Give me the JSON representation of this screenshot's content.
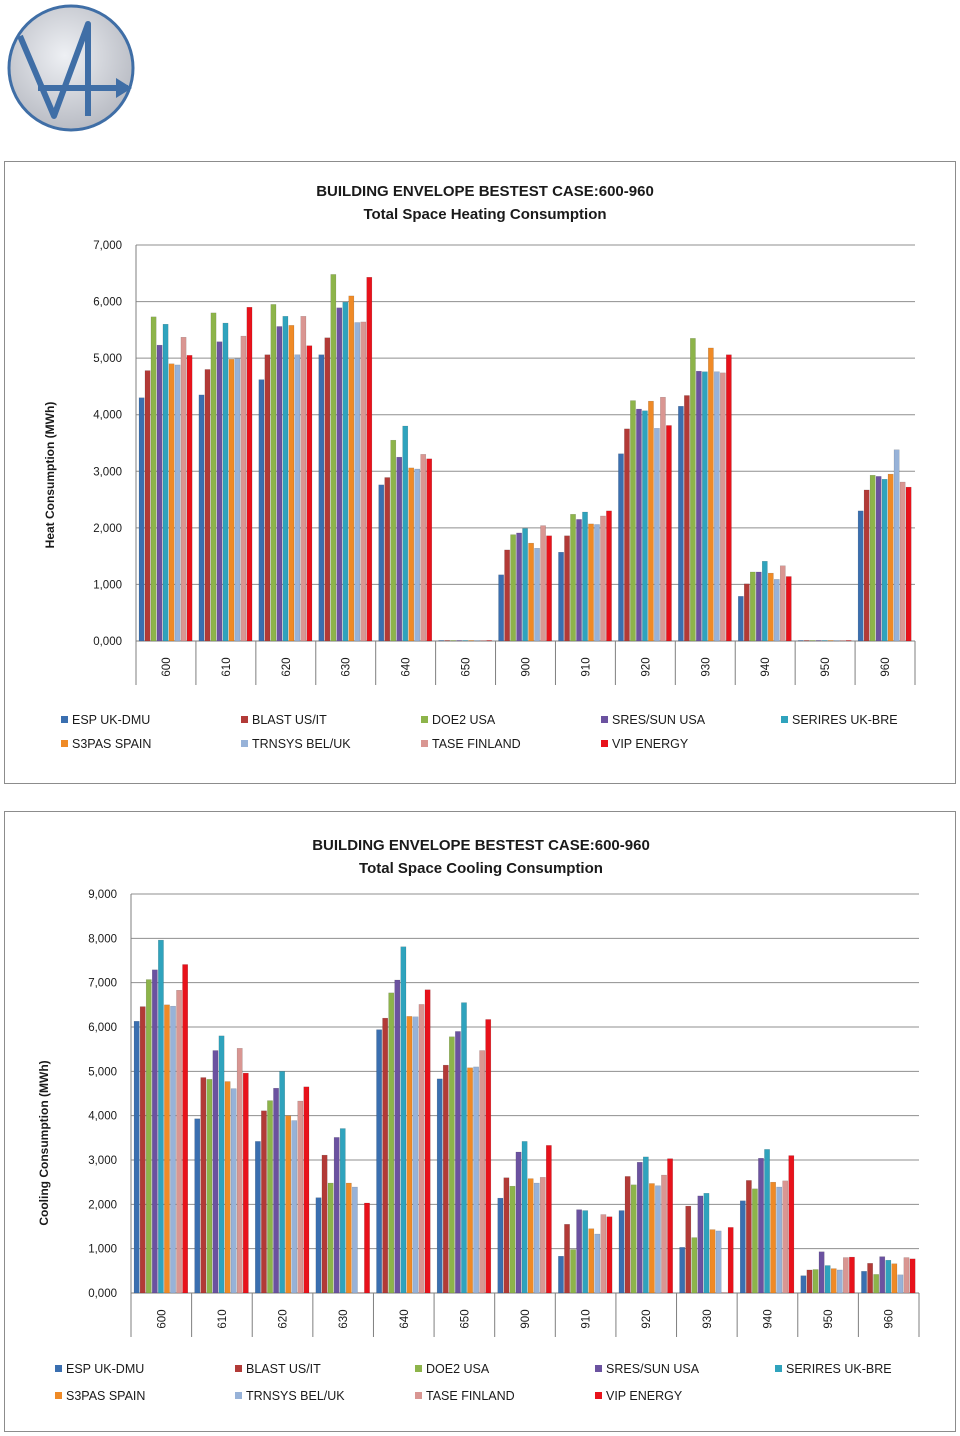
{
  "colors": {
    "ESP UK-DMU": "#3a6fb0",
    "BLAST US/IT": "#b23a37",
    "DOE2 USA": "#8db44a",
    "SRES/SUN USA": "#6b52a0",
    "SERIRES UK-BRE": "#2fa3bd",
    "S3PAS SPAIN": "#ef8a26",
    "TRNSYS BEL/UK": "#97b2d8",
    "TASE FINLAND": "#d99692",
    "VIP ENERGY": "#e8121b",
    "gridline": "#8f8f8f",
    "axis": "#7f7f7f",
    "panel_border": "#8c8c8c"
  },
  "logo": {
    "name": "building-envelope-logo",
    "stroke": "#3f6ea6",
    "fill": "#cfcfd3"
  },
  "chart_data": [
    {
      "type": "bar",
      "title": "BUILDING ENVELOPE BESTEST CASE:600-960",
      "subtitle": "Total Space Heating  Consumption",
      "xlabel": "",
      "ylabel": "Heat Consumption (MWh)",
      "ylim": [
        0,
        7000
      ],
      "yticks": [
        0,
        1000,
        2000,
        3000,
        4000,
        5000,
        6000,
        7000
      ],
      "ytick_labels": [
        "0,000",
        "1,000",
        "2,000",
        "3,000",
        "4,000",
        "5,000",
        "6,000",
        "7,000"
      ],
      "categories": [
        "600",
        "610",
        "620",
        "630",
        "640",
        "650",
        "900",
        "910",
        "920",
        "930",
        "940",
        "950",
        "960"
      ],
      "grid": true,
      "legend_position": "bottom",
      "series": [
        {
          "name": "ESP UK-DMU",
          "values": [
            4300,
            4350,
            4620,
            5060,
            2760,
            0,
            1170,
            1570,
            3310,
            4150,
            790,
            0,
            2300
          ]
        },
        {
          "name": "BLAST US/IT",
          "values": [
            4780,
            4800,
            5060,
            5360,
            2890,
            0,
            1610,
            1860,
            3750,
            4340,
            1010,
            0,
            2670
          ]
        },
        {
          "name": "DOE2 USA",
          "values": [
            5730,
            5800,
            5950,
            6480,
            3550,
            0,
            1880,
            2240,
            4250,
            5350,
            1220,
            0,
            2930
          ]
        },
        {
          "name": "SRES/SUN USA",
          "values": [
            5230,
            5290,
            5560,
            5890,
            3250,
            0,
            1910,
            2150,
            4100,
            4770,
            1220,
            0,
            2910
          ]
        },
        {
          "name": "SERIRES UK-BRE",
          "values": [
            5600,
            5620,
            5740,
            5990,
            3800,
            0,
            1990,
            2280,
            4070,
            4760,
            1410,
            0,
            2860
          ]
        },
        {
          "name": "S3PAS SPAIN",
          "values": [
            4900,
            4980,
            5580,
            6100,
            3060,
            0,
            1730,
            2070,
            4240,
            5180,
            1200,
            0,
            2950
          ]
        },
        {
          "name": "TRNSYS BEL/UK",
          "values": [
            4880,
            4990,
            5060,
            5630,
            3040,
            0,
            1640,
            2060,
            3760,
            4760,
            1090,
            0,
            3380
          ]
        },
        {
          "name": "TASE FINLAND",
          "values": [
            5370,
            5390,
            5740,
            5640,
            3300,
            0,
            2040,
            2210,
            4310,
            4740,
            1330,
            0,
            2810
          ]
        },
        {
          "name": "VIP ENERGY",
          "values": [
            5050,
            5900,
            5220,
            6430,
            3220,
            0,
            1860,
            2300,
            3810,
            5060,
            1140,
            0,
            2720
          ]
        }
      ]
    },
    {
      "type": "bar",
      "title": "BUILDING ENVELOPE BESTEST CASE:600-960",
      "subtitle": "Total Space Cooling  Consumption",
      "xlabel": "",
      "ylabel": "Cooling Consumption (MWh)",
      "ylim": [
        0,
        9000
      ],
      "yticks": [
        0,
        1000,
        2000,
        3000,
        4000,
        5000,
        6000,
        7000,
        8000,
        9000
      ],
      "ytick_labels": [
        "0,000",
        "1,000",
        "2,000",
        "3,000",
        "4,000",
        "5,000",
        "6,000",
        "7,000",
        "8,000",
        "9,000"
      ],
      "categories": [
        "600",
        "610",
        "620",
        "630",
        "640",
        "650",
        "900",
        "910",
        "920",
        "930",
        "940",
        "950",
        "960"
      ],
      "grid": true,
      "legend_position": "bottom",
      "series": [
        {
          "name": "ESP UK-DMU",
          "values": [
            6130,
            3930,
            3420,
            2150,
            5940,
            4830,
            2140,
            830,
            1860,
            1030,
            2080,
            390,
            490
          ]
        },
        {
          "name": "BLAST US/IT",
          "values": [
            6460,
            4860,
            4110,
            3110,
            6200,
            5140,
            2600,
            1550,
            2630,
            1960,
            2540,
            520,
            670
          ]
        },
        {
          "name": "DOE2 USA",
          "values": [
            7070,
            4820,
            4340,
            2480,
            6770,
            5780,
            2410,
            980,
            2440,
            1250,
            2350,
            530,
            420
          ]
        },
        {
          "name": "SRES/SUN USA",
          "values": [
            7290,
            5470,
            4620,
            3510,
            7060,
            5900,
            3180,
            1880,
            2950,
            2190,
            3040,
            930,
            820
          ]
        },
        {
          "name": "SERIRES UK-BRE",
          "values": [
            7960,
            5800,
            5000,
            3710,
            7810,
            6550,
            3420,
            1860,
            3070,
            2250,
            3240,
            620,
            740
          ]
        },
        {
          "name": "S3PAS SPAIN",
          "values": [
            6500,
            4770,
            4000,
            2480,
            6240,
            5080,
            2580,
            1450,
            2470,
            1430,
            2500,
            550,
            660
          ]
        },
        {
          "name": "TRNSYS BEL/UK",
          "values": [
            6470,
            4610,
            3890,
            2390,
            6230,
            5100,
            2480,
            1330,
            2420,
            1400,
            2390,
            520,
            410
          ]
        },
        {
          "name": "TASE FINLAND",
          "values": [
            6830,
            5520,
            4330,
            0,
            6510,
            5470,
            2610,
            1770,
            2660,
            0,
            2530,
            800,
            800
          ]
        },
        {
          "name": "VIP ENERGY",
          "values": [
            7410,
            4960,
            4650,
            2030,
            6840,
            6170,
            3330,
            1720,
            3030,
            1480,
            3100,
            810,
            770
          ]
        }
      ]
    }
  ]
}
